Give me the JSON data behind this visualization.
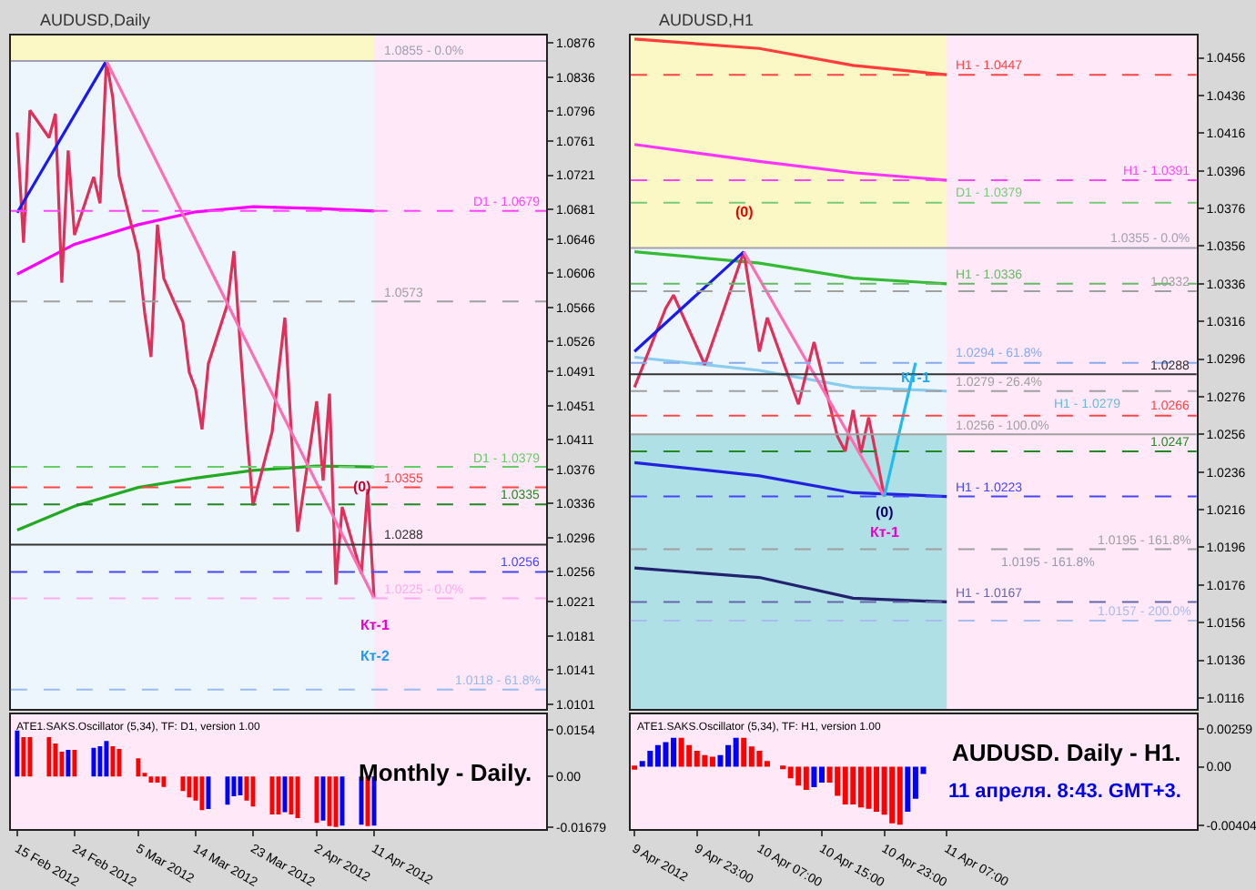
{
  "chart_data": [
    {
      "type": "line",
      "title": "AUDUSD,Daily",
      "tick_labels": "y",
      "series": [
        {
          "color": "#ff00ff",
          "x": [
            "2012-02-15",
            "2012-02-24",
            "2012-03-05",
            "2012-03-14",
            "2012-03-23",
            "2012-04-02",
            "2012-04-11"
          ],
          "values": [
            1.0605,
            1.064,
            1.0663,
            1.0678,
            1.0684,
            1.0682,
            1.0679
          ]
        },
        {
          "color": "#22aa22",
          "x": [
            "2012-02-15",
            "2012-02-24",
            "2012-03-05",
            "2012-03-14",
            "2012-03-23",
            "2012-04-02",
            "2012-04-11"
          ],
          "values": [
            1.0305,
            1.0333,
            1.0355,
            1.0366,
            1.0375,
            1.038,
            1.0379
          ]
        },
        {
          "color": "#e0305a",
          "x": [
            "2012-02-15",
            "2012-02-16",
            "2012-02-17",
            "2012-02-20",
            "2012-02-21",
            "2012-02-22",
            "2012-02-23",
            "2012-02-24",
            "2012-02-27",
            "2012-02-28",
            "2012-02-29",
            "2012-03-01",
            "2012-03-02",
            "2012-03-05",
            "2012-03-06",
            "2012-03-07",
            "2012-03-08",
            "2012-03-09",
            "2012-03-12",
            "2012-03-13",
            "2012-03-14",
            "2012-03-15",
            "2012-03-16",
            "2012-03-19",
            "2012-03-20",
            "2012-03-21",
            "2012-03-22",
            "2012-03-23",
            "2012-03-26",
            "2012-03-27",
            "2012-03-28",
            "2012-03-29",
            "2012-03-30",
            "2012-04-02",
            "2012-04-03",
            "2012-04-04",
            "2012-04-05",
            "2012-04-06",
            "2012-04-09",
            "2012-04-10",
            "2012-04-11"
          ],
          "values": [
            1.0771,
            1.0642,
            1.0797,
            1.0765,
            1.0793,
            1.0595,
            1.075,
            1.0651,
            1.0719,
            1.0688,
            1.0855,
            1.0812,
            1.072,
            1.063,
            1.056,
            1.0508,
            1.0663,
            1.06,
            1.0549,
            1.049,
            1.047,
            1.0423,
            1.05,
            1.057,
            1.0632,
            1.052,
            1.042,
            1.0334,
            1.042,
            1.049,
            1.0554,
            1.042,
            1.0303,
            1.0456,
            1.0363,
            1.0465,
            1.0241,
            1.0332,
            1.0254,
            1.0353,
            1.0225
          ]
        },
        {
          "color": "#1a1aee",
          "x": [
            "2012-02-15",
            "2012-02-29"
          ],
          "values": [
            1.0677,
            1.0855
          ]
        },
        {
          "color": "#ff6eb4",
          "x": [
            "2012-02-29",
            "2012-04-11"
          ],
          "values": [
            1.0855,
            1.0225
          ]
        }
      ],
      "xlim": [
        "2012-02-14",
        "2012-05-08"
      ],
      "ylim": [
        1.0095,
        1.0885
      ],
      "yticks": [
        1.0876,
        1.0836,
        1.0796,
        1.0761,
        1.0721,
        1.0681,
        1.0646,
        1.0606,
        1.0566,
        1.0526,
        1.0491,
        1.0451,
        1.0411,
        1.0376,
        1.0336,
        1.0296,
        1.0256,
        1.0221,
        1.0181,
        1.0141,
        1.0101
      ],
      "bands": [
        {
          "axis": "y",
          "from": 1.0855,
          "to": 1.0885,
          "color": "#fbf8c6"
        },
        {
          "axis": "x",
          "from": "2012-04-11",
          "to": "2012-05-08",
          "color": "#ffe8f8"
        }
      ],
      "ref_lines": [
        {
          "axis": "y",
          "value": 1.0855,
          "label": "1.0855 - 0.0%",
          "color": "#a0a0b0",
          "line_style": "solid"
        },
        {
          "axis": "y",
          "value": 1.0679,
          "label": "D1 - 1.0679",
          "color": "#ff44ff",
          "line_style": "dashed"
        },
        {
          "axis": "y",
          "value": 1.0573,
          "label": "1.0573",
          "color": "#a0a0a0",
          "line_style": "dashed"
        },
        {
          "axis": "y",
          "value": 1.0379,
          "label": "D1 - 1.0379",
          "color": "#66cc66",
          "line_style": "dashed"
        },
        {
          "axis": "y",
          "value": 1.0355,
          "label": "1.0355",
          "color": "#ff4444",
          "line_style": "dashed"
        },
        {
          "axis": "y",
          "value": 1.0335,
          "label": "1.0335",
          "color": "#228822",
          "line_style": "dashed"
        },
        {
          "axis": "y",
          "value": 1.0288,
          "label": "1.0288",
          "color": "#333333",
          "line_style": "solid"
        },
        {
          "axis": "y",
          "value": 1.0256,
          "label": "1.0256",
          "color": "#4444ff",
          "line_style": "dashed"
        },
        {
          "axis": "y",
          "value": 1.0225,
          "label": "1.0225 - 0.0%",
          "color": "#ffaaee",
          "line_style": "dashed"
        },
        {
          "axis": "y",
          "value": 1.0118,
          "label": "1.0118 - 61.8%",
          "color": "#99bbee",
          "line_style": "dashed"
        }
      ],
      "annotations": [
        {
          "text": "(0)",
          "x": "2012-04-09",
          "y": 1.0374
        },
        {
          "text": "Кт-1",
          "x": "2012-04-11",
          "y": 1.0212
        },
        {
          "text": "Кт-2",
          "x": "2012-04-11",
          "y": 1.0175
        }
      ]
    },
    {
      "type": "bar",
      "title": "ATE1.SAKS.Oscillator (5,34), TF: D1, version 1.00",
      "x": [
        "2012-02-15",
        "2012-02-16",
        "2012-02-17",
        "2012-02-20",
        "2012-02-21",
        "2012-02-22",
        "2012-02-23",
        "2012-02-24",
        "2012-02-27",
        "2012-02-28",
        "2012-02-29",
        "2012-03-01",
        "2012-03-02",
        "2012-03-05",
        "2012-03-06",
        "2012-03-07",
        "2012-03-08",
        "2012-03-09",
        "2012-03-12",
        "2012-03-13",
        "2012-03-14",
        "2012-03-15",
        "2012-03-16",
        "2012-03-19",
        "2012-03-20",
        "2012-03-21",
        "2012-03-22",
        "2012-03-23",
        "2012-03-26",
        "2012-03-27",
        "2012-03-28",
        "2012-03-29",
        "2012-03-30",
        "2012-04-02",
        "2012-04-03",
        "2012-04-04",
        "2012-04-05",
        "2012-04-06",
        "2012-04-09",
        "2012-04-10",
        "2012-04-11"
      ],
      "values": [
        0.0152,
        0.013,
        0.013,
        0.013,
        0.0109,
        0.0082,
        0.0088,
        0.0088,
        0.0095,
        0.01,
        0.0117,
        0.01,
        0.0091,
        0.006,
        0.0007,
        -0.0021,
        -0.0021,
        -0.0035,
        -0.0049,
        -0.007,
        -0.008,
        -0.0112,
        -0.0108,
        -0.0094,
        -0.0066,
        -0.0063,
        -0.008,
        -0.01,
        -0.0126,
        -0.0126,
        -0.0119,
        -0.0126,
        -0.0138,
        -0.0154,
        -0.0147,
        -0.0165,
        -0.0168,
        -0.0163,
        -0.016,
        -0.0165,
        -0.0163
      ],
      "colors": [
        "#0000ff",
        "#ff0000",
        "#ff0000",
        "#ff0000",
        "#ff0000",
        "#ff0000",
        "#0000ff",
        "#ff0000",
        "#0000ff",
        "#0000ff",
        "#0000ff",
        "#ff0000",
        "#ff0000",
        "#ff0000",
        "#ff0000",
        "#ff0000",
        "#ff0000",
        "#ff0000",
        "#ff0000",
        "#ff0000",
        "#ff0000",
        "#ff0000",
        "#0000ff",
        "#0000ff",
        "#0000ff",
        "#0000ff",
        "#ff0000",
        "#ff0000",
        "#ff0000",
        "#ff0000",
        "#0000ff",
        "#ff0000",
        "#ff0000",
        "#ff0000",
        "#0000ff",
        "#ff0000",
        "#ff0000",
        "#0000ff",
        "#0000ff",
        "#ff0000",
        "#0000ff"
      ],
      "xlim": [
        "2012-02-14",
        "2012-05-08"
      ],
      "ylim": [
        -0.0175,
        0.0205
      ],
      "xticks": [
        {
          "value": "2012-02-15",
          "label": "15 Feb 2012"
        },
        {
          "value": "2012-02-24",
          "label": "24 Feb 2012"
        },
        {
          "value": "2012-03-05",
          "label": "5 Mar 2012"
        },
        {
          "value": "2012-03-14",
          "label": "14 Mar 2012"
        },
        {
          "value": "2012-03-23",
          "label": "23 Mar 2012"
        },
        {
          "value": "2012-04-02",
          "label": "2 Apr 2012"
        },
        {
          "value": "2012-04-11",
          "label": "11 Apr 2012"
        }
      ],
      "yticks": [
        0.0154,
        {
          "value": 0,
          "label": "0.00"
        },
        -0.01679
      ],
      "annotations": [
        "Monthly - Daily."
      ]
    },
    {
      "type": "line",
      "title": "AUDUSD,H1",
      "tick_labels": "y",
      "series": [
        {
          "color": "#ff3b3b",
          "x": [
            "2012-04-09T15:00",
            "2012-04-10T07:00",
            "2012-04-10T19:00",
            "2012-04-11T07:00"
          ],
          "values": [
            1.0466,
            1.0461,
            1.0452,
            1.0447
          ]
        },
        {
          "color": "#ff33ff",
          "x": [
            "2012-04-09T15:00",
            "2012-04-10T07:00",
            "2012-04-10T19:00",
            "2012-04-11T07:00"
          ],
          "values": [
            1.041,
            1.0401,
            1.0395,
            1.0391
          ]
        },
        {
          "color": "#33bb33",
          "x": [
            "2012-04-09T15:00",
            "2012-04-10T07:00",
            "2012-04-10T19:00",
            "2012-04-11T07:00"
          ],
          "values": [
            1.0353,
            1.0347,
            1.0339,
            1.0336
          ]
        },
        {
          "color": "#88ccee",
          "x": [
            "2012-04-09T15:00",
            "2012-04-10T07:00",
            "2012-04-10T19:00",
            "2012-04-11T07:00"
          ],
          "values": [
            1.0297,
            1.029,
            1.0281,
            1.0279
          ]
        },
        {
          "color": "#2222dd",
          "x": [
            "2012-04-09T15:00",
            "2012-04-10T07:00",
            "2012-04-10T19:00",
            "2012-04-11T07:00"
          ],
          "values": [
            1.0241,
            1.0234,
            1.0225,
            1.0223
          ]
        },
        {
          "color": "#22226e",
          "x": [
            "2012-04-09T15:00",
            "2012-04-10T07:00",
            "2012-04-10T19:00",
            "2012-04-11T07:00"
          ],
          "values": [
            1.0185,
            1.018,
            1.0169,
            1.0167
          ]
        },
        {
          "color": "#e0305a",
          "x": [
            "2012-04-09T15:00",
            "2012-04-09T19:00",
            "2012-04-09T20:00",
            "2012-04-10T00:00",
            "2012-04-10T05:00",
            "2012-04-10T07:00",
            "2012-04-10T08:00",
            "2012-04-10T12:00",
            "2012-04-10T14:00",
            "2012-04-10T17:00",
            "2012-04-10T18:00",
            "2012-04-10T19:00",
            "2012-04-10T20:00",
            "2012-04-10T21:00",
            "2012-04-10T23:00"
          ],
          "values": [
            1.0281,
            1.0323,
            1.033,
            1.0293,
            1.0353,
            1.03,
            1.0318,
            1.0272,
            1.0305,
            1.0255,
            1.0247,
            1.0269,
            1.0246,
            1.0265,
            1.0223
          ]
        },
        {
          "color": "#1a1aee",
          "x": [
            "2012-04-09T15:00",
            "2012-04-10T05:00"
          ],
          "values": [
            1.03,
            1.0353
          ]
        },
        {
          "color": "#ff6eb4",
          "x": [
            "2012-04-10T05:00",
            "2012-04-10T23:00"
          ],
          "values": [
            1.0353,
            1.0223
          ]
        },
        {
          "color": "#22bbee",
          "x": [
            "2012-04-10T23:00",
            "2012-04-11T03:00"
          ],
          "values": [
            1.0223,
            1.0294
          ]
        }
      ],
      "xlim": [
        "2012-04-09T14:30",
        "2012-04-12T15:00"
      ],
      "ylim": [
        1.011,
        1.0468
      ],
      "yticks": [
        1.0456,
        1.0436,
        1.0416,
        1.0396,
        1.0376,
        1.0356,
        1.0336,
        1.0316,
        1.0296,
        1.0276,
        1.0256,
        1.0236,
        1.0216,
        1.0196,
        1.0176,
        1.0156,
        1.0136,
        1.0116
      ],
      "bands": [
        {
          "axis": "y",
          "from": 1.0355,
          "to": 1.0468,
          "color": "#fbf8c6"
        },
        {
          "axis": "y",
          "from": 1.011,
          "to": 1.0256,
          "color": "#aee0e6"
        },
        {
          "axis": "x",
          "from": "2012-04-11T07:00",
          "to": "2012-04-12T15:00",
          "color": "#ffe8f8"
        }
      ],
      "ref_lines": [
        {
          "axis": "y",
          "value": 1.0447,
          "label": "H1 - 1.0447",
          "color": "#ff4444",
          "line_style": "dashed"
        },
        {
          "axis": "y",
          "value": 1.0391,
          "label": "H1 - 1.0391",
          "color": "#ff44ff",
          "line_style": "dashed"
        },
        {
          "axis": "y",
          "value": 1.0379,
          "label": "D1 - 1.0379",
          "color": "#77cc77",
          "line_style": "dashed"
        },
        {
          "axis": "y",
          "value": 1.0355,
          "label": "1.0355 - 0.0%",
          "color": "#a0a0b0",
          "line_style": "solid"
        },
        {
          "axis": "y",
          "value": 1.0336,
          "label": "H1 - 1.0336",
          "color": "#66bb66",
          "line_style": "dashed"
        },
        {
          "axis": "y",
          "value": 1.0332,
          "label": "1.0332",
          "color": "#a0a0a0",
          "line_style": "dashed"
        },
        {
          "axis": "y",
          "value": 1.0294,
          "label": "1.0294 - 61.8%",
          "color": "#88aaee",
          "line_style": "dashed"
        },
        {
          "axis": "y",
          "value": 1.0288,
          "label": "1.0288",
          "color": "#333333",
          "line_style": "solid"
        },
        {
          "axis": "y",
          "value": 1.0279,
          "label": "1.0279 - 26.4%",
          "color": "#a0a0a0",
          "line_style": "dashed"
        },
        {
          "axis": "y",
          "value": 1.0266,
          "label": "1.0266",
          "color": "#ff4444",
          "line_style": "dashed"
        },
        {
          "axis": "y",
          "value": 1.0256,
          "label": "1.0256 - 100.0%",
          "color": "#a0a0a0",
          "line_style": "solid"
        },
        {
          "axis": "y",
          "value": 1.0247,
          "label": "1.0247",
          "color": "#228822",
          "line_style": "dashed"
        },
        {
          "axis": "y",
          "value": 1.0223,
          "label": "H1 - 1.0223",
          "color": "#4444ff",
          "line_style": "dashed"
        },
        {
          "axis": "y",
          "value": 1.0195,
          "label": "1.0195 - 161.8%",
          "color": "#a0a0a0",
          "line_style": "dashed"
        },
        {
          "axis": "y",
          "value": 1.0167,
          "label": "H1 - 1.0167",
          "color": "#6666aa",
          "line_style": "dashed"
        },
        {
          "axis": "y",
          "value": 1.0157,
          "label": "1.0157 - 200.0%",
          "color": "#aabbee",
          "line_style": "dashed"
        }
      ],
      "annotations": [
        {
          "text": "(0)",
          "x": "2012-04-10T05:00",
          "y": 1.0382
        },
        {
          "text": "Кт-1",
          "x": "2012-04-11T03:00",
          "y": 1.0294
        },
        {
          "text": "(0)",
          "x": "2012-04-10T23:00",
          "y": 1.0223
        },
        {
          "text": "Кт-1",
          "x": "2012-04-10T23:00",
          "y": 1.0223
        },
        {
          "text": "H1 - 1.0279",
          "x": "2012-04-12T01:00",
          "y": 1.0279
        },
        {
          "text": "1.0195 - 161.8%",
          "x": "2012-04-11T20:00",
          "y": 1.0195
        }
      ]
    },
    {
      "type": "bar",
      "title": "ATE1.SAKS.Oscillator (5,34), TF: H1, version 1.00",
      "x": [
        "2012-04-09T15:00",
        "2012-04-09T16:00",
        "2012-04-09T17:00",
        "2012-04-09T18:00",
        "2012-04-09T19:00",
        "2012-04-09T20:00",
        "2012-04-09T21:00",
        "2012-04-09T22:00",
        "2012-04-09T23:00",
        "2012-04-10T00:00",
        "2012-04-10T01:00",
        "2012-04-10T02:00",
        "2012-04-10T03:00",
        "2012-04-10T04:00",
        "2012-04-10T05:00",
        "2012-04-10T06:00",
        "2012-04-10T07:00",
        "2012-04-10T08:00",
        "2012-04-10T09:00",
        "2012-04-10T10:00",
        "2012-04-10T11:00",
        "2012-04-10T12:00",
        "2012-04-10T13:00",
        "2012-04-10T14:00",
        "2012-04-10T15:00",
        "2012-04-10T16:00",
        "2012-04-10T17:00",
        "2012-04-10T18:00",
        "2012-04-10T19:00",
        "2012-04-10T20:00",
        "2012-04-10T21:00",
        "2012-04-10T22:00",
        "2012-04-10T23:00",
        "2012-04-11T00:00",
        "2012-04-11T01:00",
        "2012-04-11T02:00",
        "2012-04-11T03:00",
        "2012-04-11T04:00"
      ],
      "values": [
        -0.0002,
        0.0004,
        0.0011,
        0.0015,
        0.0017,
        0.002,
        0.002,
        0.0015,
        0.0011,
        0.0008,
        0.0007,
        0.0008,
        0.0015,
        0.002,
        0.002,
        0.0014,
        0.0011,
        0.0004,
        0.0,
        -0.0001,
        -0.0008,
        -0.0013,
        -0.0016,
        -0.0014,
        -0.0011,
        -0.0011,
        -0.002,
        -0.0026,
        -0.0026,
        -0.0028,
        -0.0029,
        -0.0031,
        -0.0033,
        -0.0039,
        -0.004,
        -0.0031,
        -0.0022,
        -0.0005
      ],
      "colors": [
        "#ff0000",
        "#0000ff",
        "#0000ff",
        "#0000ff",
        "#0000ff",
        "#0000ff",
        "#ff0000",
        "#ff0000",
        "#ff0000",
        "#ff0000",
        "#ff0000",
        "#0000ff",
        "#0000ff",
        "#0000ff",
        "#ff0000",
        "#ff0000",
        "#ff0000",
        "#ff0000",
        "#ff0000",
        "#ff0000",
        "#ff0000",
        "#ff0000",
        "#ff0000",
        "#0000ff",
        "#0000ff",
        "#ff0000",
        "#ff0000",
        "#ff0000",
        "#ff0000",
        "#ff0000",
        "#ff0000",
        "#ff0000",
        "#ff0000",
        "#ff0000",
        "#ff0000",
        "#0000ff",
        "#0000ff",
        "#0000ff"
      ],
      "xlim": [
        "2012-04-09T14:30",
        "2012-04-12T15:00"
      ],
      "ylim": [
        -0.0043,
        0.0036
      ],
      "xticks": [
        {
          "value": "2012-04-09T15:00",
          "label": "9 Apr 2012"
        },
        {
          "value": "2012-04-09T23:00",
          "label": "9 Apr 23:00"
        },
        {
          "value": "2012-04-10T07:00",
          "label": "10 Apr 07:00"
        },
        {
          "value": "2012-04-10T15:00",
          "label": "10 Apr 15:00"
        },
        {
          "value": "2012-04-10T23:00",
          "label": "10 Apr 23:00"
        },
        {
          "value": "2012-04-11T07:00",
          "label": "11 Apr 07:00"
        }
      ],
      "yticks": [
        0.00259,
        {
          "value": 0,
          "label": "0.00"
        },
        -0.00404
      ],
      "annotations": [
        "AUDUSD. Daily - H1.",
        "11 апреля. 8:43. GMT+3."
      ]
    }
  ]
}
